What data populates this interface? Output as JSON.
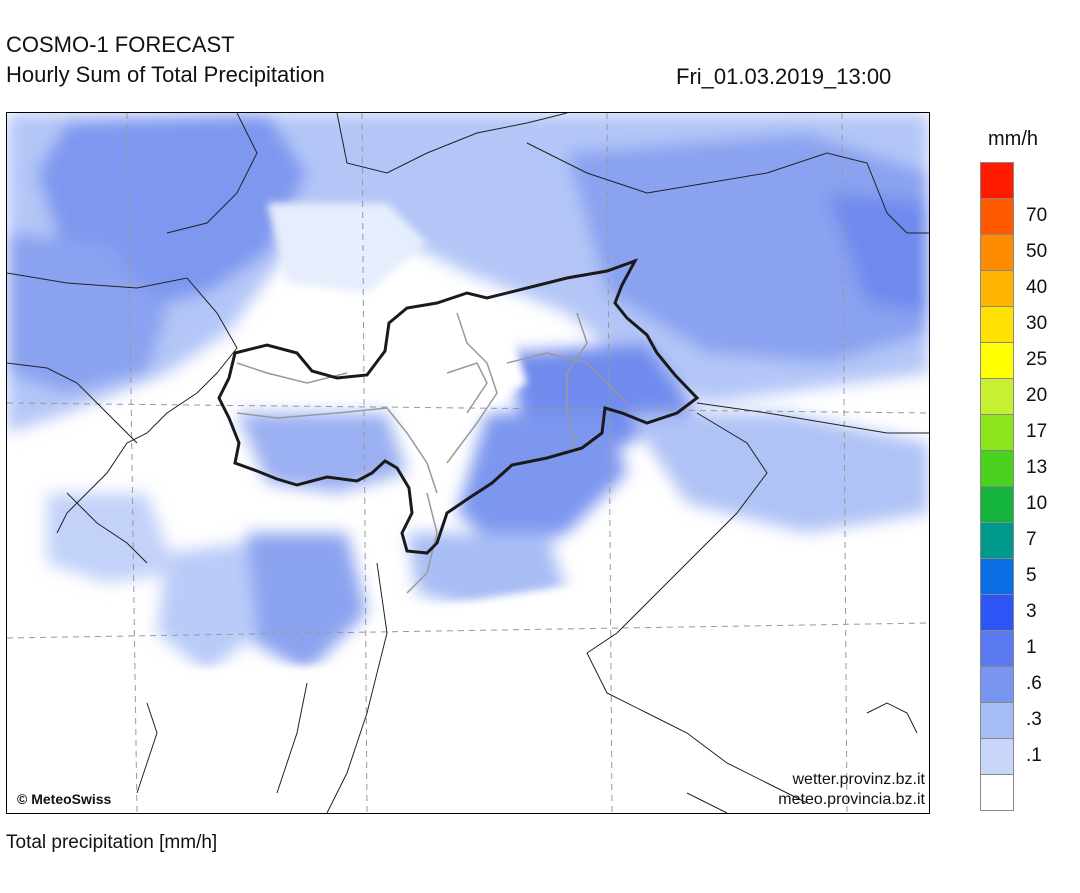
{
  "header": {
    "title": "COSMO-1 FORECAST",
    "subtitle": "Hourly Sum of Total Precipitation",
    "valid_time": "Fri_01.03.2019_13:00"
  },
  "map": {
    "copyright": "© MeteoSwiss",
    "credit_de": "wetter.provinz.bz.it",
    "credit_it": "meteo.provincia.bz.it"
  },
  "legend": {
    "unit": "mm/h",
    "bins": [
      {
        "label": "",
        "color": "#ff1a00"
      },
      {
        "label": "70",
        "color": "#ff5a00"
      },
      {
        "label": "50",
        "color": "#ff8c00"
      },
      {
        "label": "40",
        "color": "#ffb400"
      },
      {
        "label": "30",
        "color": "#ffe000"
      },
      {
        "label": "25",
        "color": "#ffff00"
      },
      {
        "label": "20",
        "color": "#c8f032"
      },
      {
        "label": "17",
        "color": "#8ce61e"
      },
      {
        "label": "13",
        "color": "#4bd21e"
      },
      {
        "label": "10",
        "color": "#14b43c"
      },
      {
        "label": "7",
        "color": "#009a8a"
      },
      {
        "label": "5",
        "color": "#0a6ee6"
      },
      {
        "label": "3",
        "color": "#2d55f5"
      },
      {
        "label": "1",
        "color": "#5a78f0"
      },
      {
        "label": ".6",
        "color": "#7896f0"
      },
      {
        "label": ".3",
        "color": "#a5bcf5"
      },
      {
        "label": ".1",
        "color": "#c8d6fa"
      },
      {
        "label": "",
        "color": "#ffffff"
      }
    ]
  },
  "footer": {
    "caption": "Total precipitation [mm/h]"
  }
}
